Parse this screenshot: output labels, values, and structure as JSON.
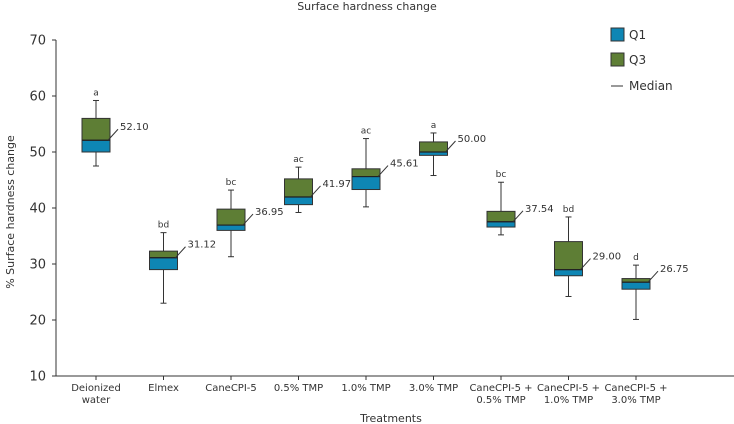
{
  "chart_data": {
    "type": "box",
    "title": "Surface hardness change",
    "xlabel": "Treatments",
    "ylabel": "% Surface hardness change",
    "ylim": [
      10,
      70
    ],
    "yticks": [
      10,
      20,
      30,
      40,
      50,
      60,
      70
    ],
    "legend": {
      "position": "top-right",
      "entries": [
        {
          "key": "q1",
          "label": "Q1",
          "color": "#0e86b4"
        },
        {
          "key": "q3",
          "label": "Q3",
          "color": "#5e7e35"
        },
        {
          "key": "median",
          "label": "Median"
        }
      ]
    },
    "categories": [
      {
        "label": [
          "Deionized",
          "water"
        ],
        "min": 47.5,
        "q1": 50.0,
        "median": 52.1,
        "q3": 56.0,
        "max": 59.2,
        "median_label": "52.10",
        "letter": "a"
      },
      {
        "label": [
          "Elmex"
        ],
        "min": 23.0,
        "q1": 29.0,
        "median": 31.12,
        "q3": 32.3,
        "max": 35.6,
        "median_label": "31.12",
        "letter": "bd"
      },
      {
        "label": [
          "CaneCPI-5"
        ],
        "min": 31.3,
        "q1": 36.0,
        "median": 36.95,
        "q3": 39.8,
        "max": 43.2,
        "median_label": "36.95",
        "letter": "bc"
      },
      {
        "label": [
          "0.5% TMP"
        ],
        "min": 39.2,
        "q1": 40.6,
        "median": 41.97,
        "q3": 45.2,
        "max": 47.3,
        "median_label": "41.97",
        "letter": "ac"
      },
      {
        "label": [
          "1.0% TMP"
        ],
        "min": 40.2,
        "q1": 43.3,
        "median": 45.61,
        "q3": 47.0,
        "max": 52.4,
        "median_label": "45.61",
        "letter": "ac"
      },
      {
        "label": [
          "3.0% TMP"
        ],
        "min": 45.8,
        "q1": 49.4,
        "median": 50.0,
        "q3": 51.8,
        "max": 53.4,
        "median_label": "50.00",
        "letter": "a"
      },
      {
        "label": [
          "CaneCPI-5 +",
          "0.5% TMP"
        ],
        "min": 35.2,
        "q1": 36.6,
        "median": 37.54,
        "q3": 39.4,
        "max": 44.6,
        "median_label": "37.54",
        "letter": "bc"
      },
      {
        "label": [
          "CaneCPI-5 +",
          "1.0% TMP"
        ],
        "min": 24.2,
        "q1": 27.9,
        "median": 29.0,
        "q3": 34.0,
        "max": 38.4,
        "median_label": "29.00",
        "letter": "bd"
      },
      {
        "label": [
          "CaneCPI-5 +",
          "3.0% TMP"
        ],
        "min": 20.1,
        "q1": 25.5,
        "median": 26.75,
        "q3": 27.4,
        "max": 29.8,
        "median_label": "26.75",
        "letter": "d"
      }
    ],
    "colors": {
      "q1": "#0e86b4",
      "q3": "#5e7e35",
      "axis": "#333333",
      "median": "#222222"
    }
  }
}
